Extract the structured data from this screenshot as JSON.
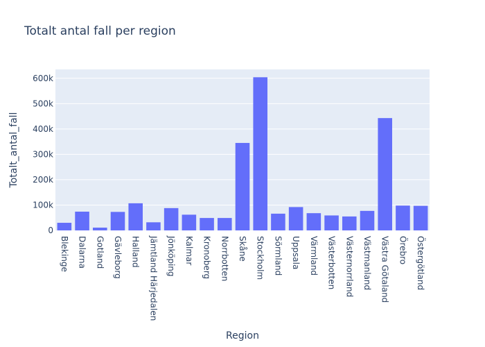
{
  "chart_data": {
    "type": "bar",
    "title": "Totalt antal fall per region",
    "xlabel": "Region",
    "ylabel": "Totalt_antal_fall",
    "categories": [
      "Blekinge",
      "Dalarna",
      "Gotland",
      "Gävleborg",
      "Halland",
      "Jämtland Härjedalen",
      "Jönköping",
      "Kalmar",
      "Kronoberg",
      "Norrbotten",
      "Skåne",
      "Stockholm",
      "Sörmland",
      "Uppsala",
      "Värmland",
      "Västerbotten",
      "Västernorrland",
      "Västmanland",
      "Västra Götaland",
      "Örebro",
      "Östergötland"
    ],
    "values": [
      30000,
      74000,
      11000,
      73000,
      107000,
      32000,
      88000,
      62000,
      49000,
      49000,
      345000,
      604000,
      66000,
      92000,
      68000,
      59000,
      55000,
      77000,
      443000,
      98000,
      97000
    ],
    "ylim": [
      0,
      635000
    ],
    "yticks": [
      0,
      100000,
      200000,
      300000,
      400000,
      500000,
      600000
    ],
    "ytick_labels": [
      "0",
      "100k",
      "200k",
      "300k",
      "400k",
      "500k",
      "600k"
    ],
    "grid": true,
    "colors": {
      "bar": "#636efa",
      "plot_bg": "#e5ecf6",
      "grid": "#ffffff",
      "text": "#2a3f5f"
    }
  }
}
